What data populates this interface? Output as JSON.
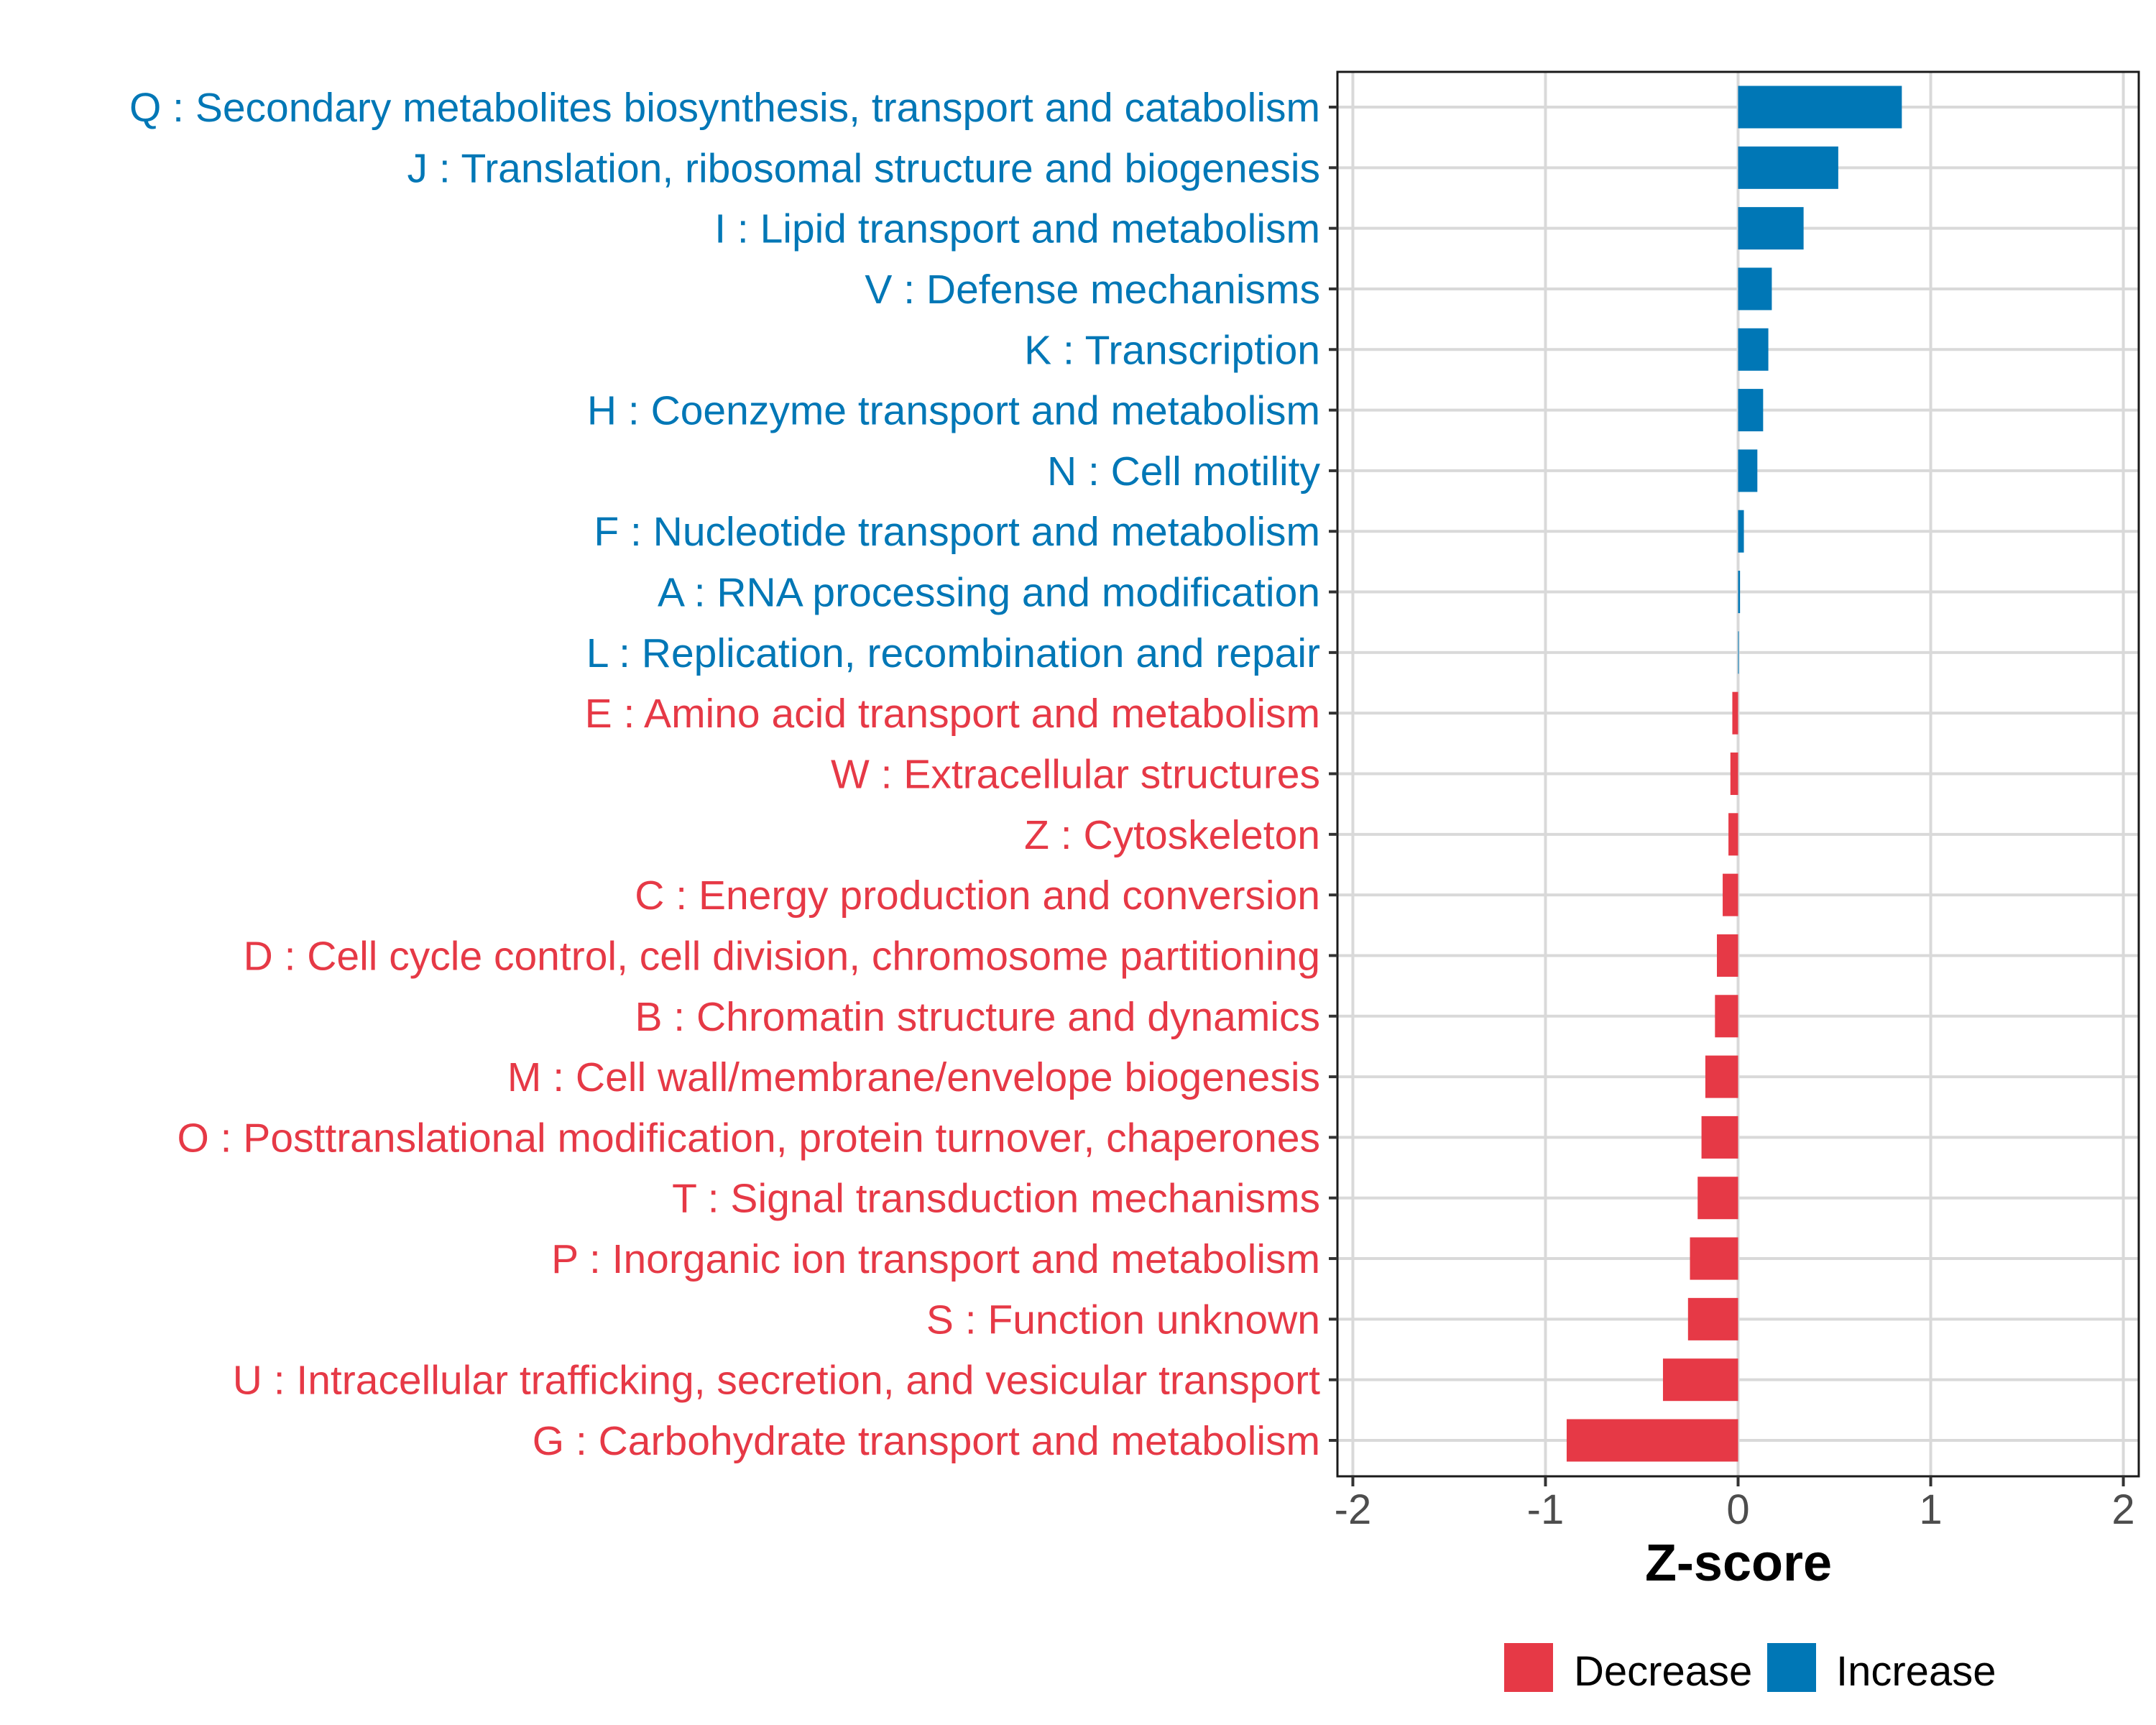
{
  "chart_data": {
    "type": "bar",
    "orientation": "horizontal",
    "title": "",
    "xlabel": "Z-score",
    "ylabel": "",
    "xlim": [
      -2.08,
      2.08
    ],
    "x_ticks": [
      -2,
      -1,
      0,
      1,
      2
    ],
    "x_tick_labels": [
      "-2",
      "-1",
      "0",
      "1",
      "2"
    ],
    "grid": true,
    "legend_position": "bottom",
    "colors": {
      "Decrease": "#E63946",
      "Increase": "#0077B6"
    },
    "legend": [
      {
        "label": "Decrease",
        "color": "#E63946"
      },
      {
        "label": "Increase",
        "color": "#0077B6"
      }
    ],
    "categories": [
      "Q : Secondary metabolites biosynthesis, transport and catabolism",
      "J : Translation, ribosomal structure and biogenesis",
      "I : Lipid transport and metabolism",
      "V : Defense mechanisms",
      "K : Transcription",
      "H : Coenzyme transport and metabolism",
      "N : Cell motility",
      "F : Nucleotide transport and metabolism",
      "A : RNA processing and modification",
      "L : Replication, recombination and repair",
      "E : Amino acid transport and metabolism",
      "W : Extracellular structures",
      "Z : Cytoskeleton",
      "C : Energy production and conversion",
      "D : Cell cycle control, cell division, chromosome partitioning",
      "B : Chromatin structure and dynamics",
      "M : Cell wall/membrane/envelope biogenesis",
      "O : Posttranslational modification, protein turnover, chaperones",
      "T : Signal transduction mechanisms",
      "P : Inorganic ion transport and metabolism",
      "S : Function unknown",
      "U : Intracellular trafficking, secretion, and vesicular transport",
      "G : Carbohydrate transport and metabolism"
    ],
    "values": [
      0.85,
      0.52,
      0.34,
      0.175,
      0.157,
      0.13,
      0.1,
      0.03,
      0.01,
      0.003,
      -0.03,
      -0.04,
      -0.05,
      -0.08,
      -0.11,
      -0.12,
      -0.17,
      -0.19,
      -0.21,
      -0.25,
      -0.26,
      -0.39,
      -0.89
    ],
    "groups": [
      "Increase",
      "Increase",
      "Increase",
      "Increase",
      "Increase",
      "Increase",
      "Increase",
      "Increase",
      "Increase",
      "Increase",
      "Decrease",
      "Decrease",
      "Decrease",
      "Decrease",
      "Decrease",
      "Decrease",
      "Decrease",
      "Decrease",
      "Decrease",
      "Decrease",
      "Decrease",
      "Decrease",
      "Decrease"
    ]
  }
}
